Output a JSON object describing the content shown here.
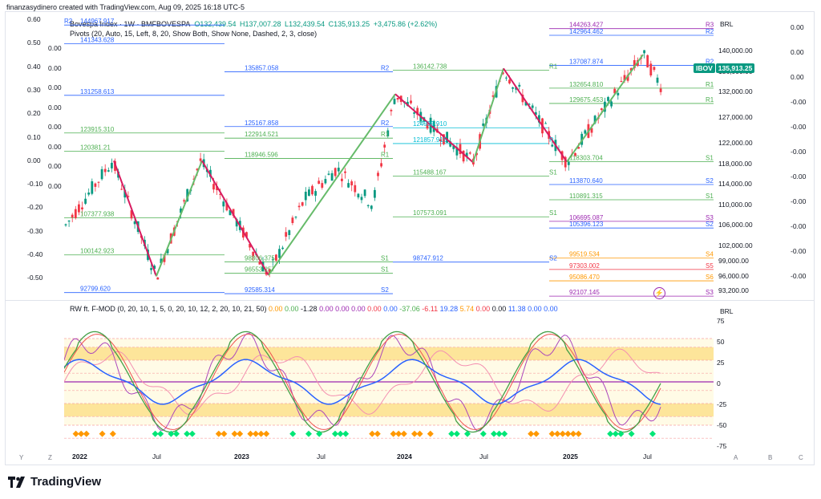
{
  "header": {
    "creator_line": "finanzasydinero created with TradingView.com, Aug 09, 2025 16:18 UTC-5"
  },
  "main_pane": {
    "symbol": "Bovespa Index · 1W · BMFBOVESPA",
    "ohlc": {
      "o_label": "O",
      "o": "132,439.54",
      "h_label": "H",
      "h": "137,007.28",
      "l_label": "L",
      "l": "132,439.54",
      "c_label": "C",
      "c": "135,913.25",
      "change": "+3,475.86 (+2.62%)"
    },
    "pivots_indicator": "Pivots (20, Auto, 15, Left, 8, 20, Show Both, Show None, Dashed, 2, 3, close)",
    "currency": "BRL",
    "ticker_tag": "IBOV",
    "last_price": "135,913.25",
    "price_axis": [
      "140,000.00",
      "136,000.00",
      "132,000.00",
      "127,000.00",
      "122,000.00",
      "118,000.00",
      "114,000.00",
      "110,000.00",
      "106,000.00",
      "102,000.00",
      "99,000.00",
      "96,000.00",
      "93,200.00"
    ],
    "left_axis": [
      "0.60",
      "0.50",
      "0.40",
      "0.30",
      "0.20",
      "0.10",
      "0.00",
      "-0.10",
      "-0.20",
      "-0.30",
      "-0.40",
      "-0.50"
    ],
    "left_axis_inner": [
      "0.00",
      "0.00",
      "0.00",
      "0.00",
      "0.00",
      "0.00",
      "0.00",
      "0.00"
    ],
    "right_axis_outer": [
      "0.00",
      "0.00",
      "0.00",
      "-0.00",
      "-0.00",
      "-0.00",
      "-0.00",
      "-0.00",
      "-0.00",
      "-0.00",
      "-0.00"
    ],
    "pivot_levels": [
      {
        "tag": "R2",
        "value": "144967.917"
      },
      {
        "tag": "",
        "value": "141343.628"
      },
      {
        "tag": "R2",
        "value": "135857.058"
      },
      {
        "tag": "R1",
        "value": "136142.738"
      },
      {
        "tag": "",
        "value": "131258.613"
      },
      {
        "tag": "R2",
        "value": "125167.858"
      },
      {
        "tag": "R1",
        "value": "122914.521"
      },
      {
        "tag": "",
        "value": "123915.310"
      },
      {
        "tag": "",
        "value": "124939.910"
      },
      {
        "tag": "P",
        "value": "121857.915"
      },
      {
        "tag": "",
        "value": "120381.21"
      },
      {
        "tag": "R1",
        "value": "118946.596"
      },
      {
        "tag": "S1",
        "value": "115488.167"
      },
      {
        "tag": "",
        "value": "107377.938"
      },
      {
        "tag": "S1",
        "value": "107573.091"
      },
      {
        "tag": "",
        "value": "100142.923"
      },
      {
        "tag": "S1",
        "value": "98806.375"
      },
      {
        "tag": "S1",
        "value": "96553.257"
      },
      {
        "tag": "S2",
        "value": "98747.912"
      },
      {
        "tag": "",
        "value": "92799.620"
      },
      {
        "tag": "S2",
        "value": "92585.314"
      },
      {
        "tag": "R3",
        "value": "144263.427"
      },
      {
        "tag": "R2",
        "value": "142964.462"
      },
      {
        "tag": "R2",
        "value": "137087.874"
      },
      {
        "tag": "R1",
        "value": "132654.810"
      },
      {
        "tag": "R1",
        "value": "129675.453"
      },
      {
        "tag": "S1",
        "value": "118303.704"
      },
      {
        "tag": "S2",
        "value": "113870.640"
      },
      {
        "tag": "S1",
        "value": "110891.315"
      },
      {
        "tag": "S3",
        "value": "106695.087"
      },
      {
        "tag": "S2",
        "value": "105396.123"
      },
      {
        "tag": "S4",
        "value": "99519.534"
      },
      {
        "tag": "S5",
        "value": "97303.002"
      },
      {
        "tag": "S6",
        "value": "95086.470"
      },
      {
        "tag": "S3",
        "value": "92107.145"
      }
    ]
  },
  "sub_pane": {
    "indicator": "RW ft. F-MOD (0, 20, 10, 1, 5, 0, 20, 10, 12, 2, 20, 10, 21, 50)",
    "values": [
      "0.00",
      "0.00",
      "-1.28",
      "0.00",
      "0.00",
      "0.00",
      "0.00",
      "0.00",
      "-37.06",
      "-6.11",
      "19.28",
      "5.74",
      "0.00",
      "0.00",
      "11.38",
      "0.00",
      "0.00"
    ],
    "value_colors": [
      "#ff9800",
      "#4caf50",
      "#131722",
      "#9c27b0",
      "#9c27b0",
      "#9c27b0",
      "#f23645",
      "#2962ff",
      "#4caf50",
      "#f23645",
      "#2962ff",
      "#ff9800",
      "#f23645",
      "#131722",
      "#2962ff",
      "#2962ff",
      "#2962ff"
    ],
    "currency": "BRL",
    "axis": [
      "75",
      "50",
      "25",
      "0",
      "-25",
      "-50",
      "-75"
    ]
  },
  "time_axis": [
    "2022",
    "Jul",
    "2023",
    "Jul",
    "2024",
    "Jul",
    "2025",
    "Jul"
  ],
  "bottom_buttons": [
    "Y",
    "Z",
    "A",
    "B",
    "C"
  ],
  "footer": {
    "brand": "TradingView"
  },
  "colors": {
    "up": "#089981",
    "down": "#f23645",
    "accent": "#089981",
    "pivot_green": "#4caf50",
    "pivot_red": "#d81b60",
    "zone": "#fff3c4",
    "zone_dark": "#fde59a"
  }
}
